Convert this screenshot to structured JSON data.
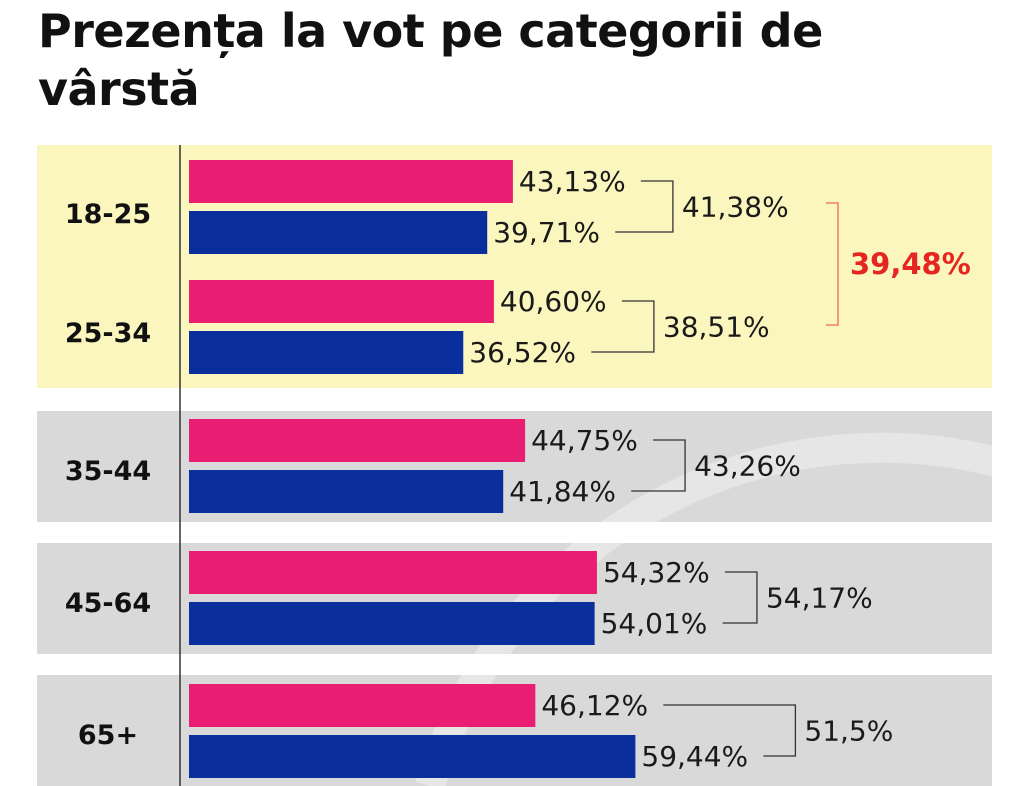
{
  "chart_data": {
    "type": "bar",
    "orientation": "horizontal",
    "title": "Prezența la vot pe categorii de vârstă",
    "categories": [
      "18-25",
      "25-34",
      "35-44",
      "45-64",
      "65+"
    ],
    "series": [
      {
        "values": [
          43.13,
          40.6,
          44.75,
          54.32,
          46.12
        ],
        "labels": [
          "43,13%",
          "40,60%",
          "44,75%",
          "54,32%",
          "46,12%"
        ]
      },
      {
        "values": [
          39.71,
          36.52,
          41.84,
          54.01,
          59.44
        ],
        "labels": [
          "39,71%",
          "36,52%",
          "41,84%",
          "54,01%",
          "59,44%"
        ]
      }
    ],
    "category_averages": {
      "values": [
        41.38,
        38.51,
        43.26,
        54.17,
        51.5
      ],
      "labels": [
        "41,38%",
        "38,51%",
        "43,26%",
        "54,17%",
        "51,5%"
      ]
    },
    "group_total": {
      "categories": [
        "18-25",
        "25-34"
      ],
      "value": 39.48,
      "label": "39,48%"
    },
    "xlim": [
      0,
      100
    ],
    "grid": false,
    "legend": "none"
  },
  "colors": {
    "series_1": "#e91e72",
    "series_2": "#0a2f9c",
    "highlight_band": "#fbf6bd",
    "band": "#d9d9d9",
    "total": "#e52620",
    "bracket": "#333333",
    "total_bracket": "#e86a5a"
  }
}
